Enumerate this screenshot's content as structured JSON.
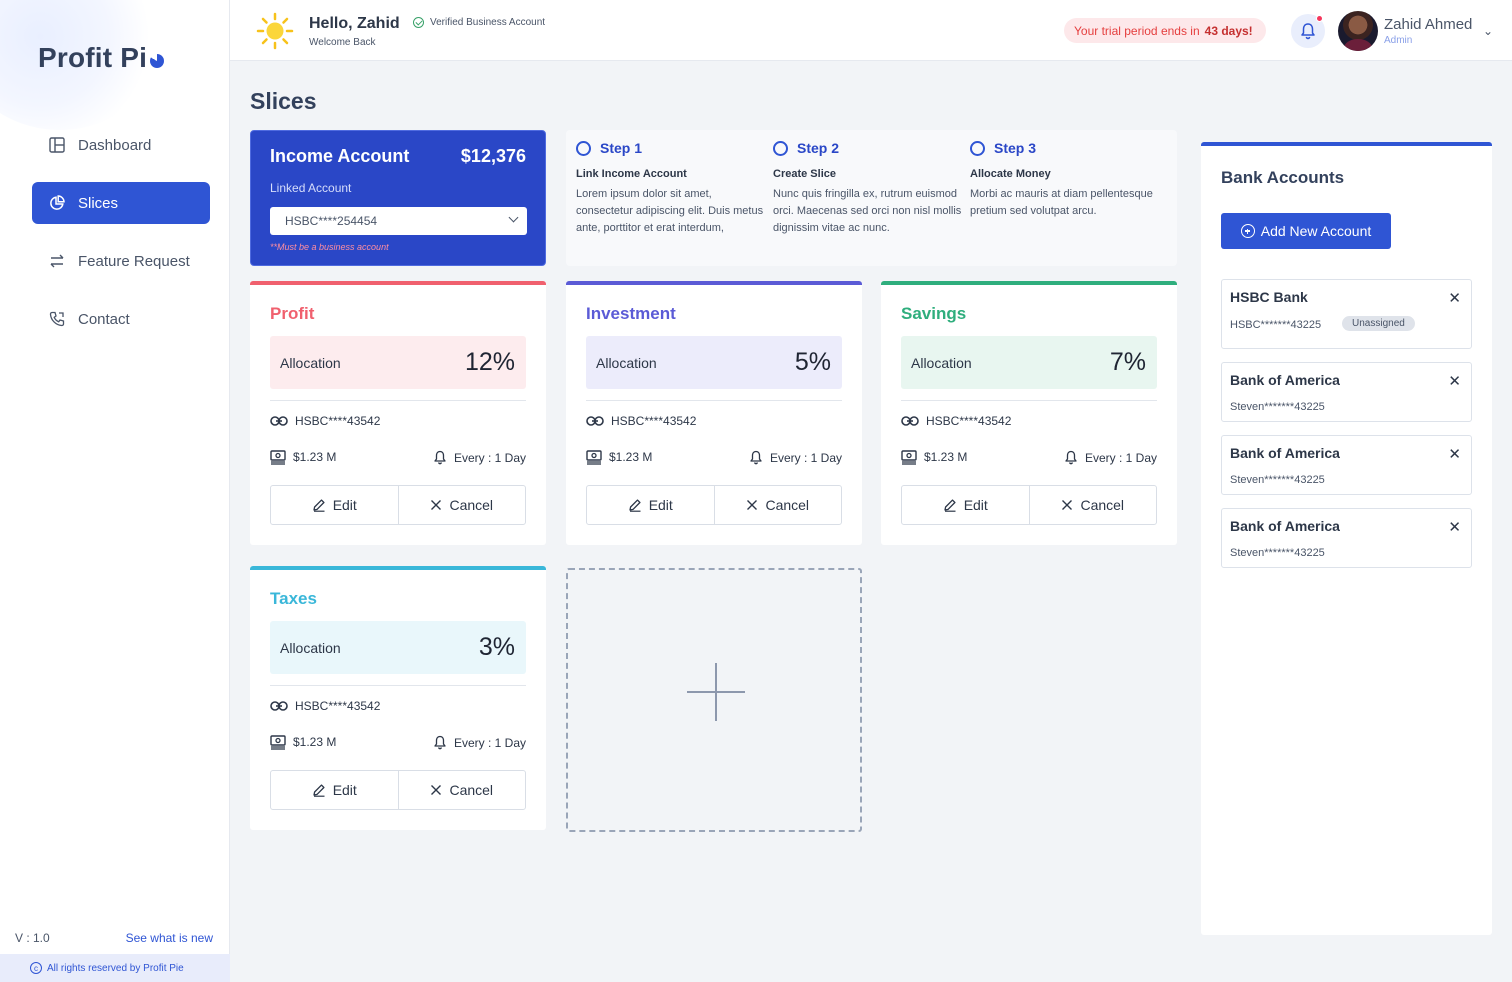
{
  "sidebar": {
    "logo": "Profit Pi",
    "items": [
      {
        "label": "Dashboard"
      },
      {
        "label": "Slices"
      },
      {
        "label": "Feature Request"
      },
      {
        "label": "Contact"
      }
    ],
    "version": "V : 1.0",
    "whats_new": "See what is new",
    "footer": "All rights reserved by Profit Pie"
  },
  "header": {
    "greeting": "Hello, Zahid",
    "welcome": "Welcome Back",
    "verified": "Verified Business Account",
    "trial_prefix": "Your trial period ends in",
    "trial_days": "43 days!",
    "user_name": "Zahid Ahmed",
    "user_role": "Admin"
  },
  "page_title": "Slices",
  "income": {
    "title": "Income Account",
    "amount": "$12,376",
    "linked_label": "Linked Account",
    "selected": "HSBC****254454",
    "note": "**Must be a business account"
  },
  "steps": [
    {
      "title": "Step 1",
      "subtitle": "Link Income Account",
      "desc": "Lorem ipsum dolor sit amet, consectetur adipiscing elit. Duis metus ante, porttitor et erat interdum,"
    },
    {
      "title": "Step 2",
      "subtitle": "Create Slice",
      "desc": "Nunc quis fringilla ex, rutrum euismod orci. Maecenas sed orci non nisl mollis dignissim vitae ac nunc."
    },
    {
      "title": "Step 3",
      "subtitle": "Allocate Money",
      "desc": "Morbi ac mauris at diam pellentesque pretium sed volutpat arcu."
    }
  ],
  "slices": [
    {
      "name": "Profit",
      "alloc_label": "Allocation",
      "alloc": "12%",
      "account": "HSBC****43542",
      "amount": "$1.23 M",
      "freq": "Every : 1 Day",
      "edit": "Edit",
      "cancel": "Cancel",
      "color": "#f0606e",
      "tint": "#fdecee"
    },
    {
      "name": "Investment",
      "alloc_label": "Allocation",
      "alloc": "5%",
      "account": "HSBC****43542",
      "amount": "$1.23 M",
      "freq": "Every : 1 Day",
      "edit": "Edit",
      "cancel": "Cancel",
      "color": "#5b5bd6",
      "tint": "#ececfb"
    },
    {
      "name": "Savings",
      "alloc_label": "Allocation",
      "alloc": "7%",
      "account": "HSBC****43542",
      "amount": "$1.23 M",
      "freq": "Every : 1 Day",
      "edit": "Edit",
      "cancel": "Cancel",
      "color": "#2fae7d",
      "tint": "#e8f6f0"
    },
    {
      "name": "Taxes",
      "alloc_label": "Allocation",
      "alloc": "3%",
      "account": "HSBC****43542",
      "amount": "$1.23 M",
      "freq": "Every : 1 Day",
      "edit": "Edit",
      "cancel": "Cancel",
      "color": "#3ab7d9",
      "tint": "#e9f7fb"
    }
  ],
  "bank": {
    "title": "Bank Accounts",
    "add_label": "Add New Account",
    "accounts": [
      {
        "name": "HSBC Bank",
        "number": "HSBC*******43225",
        "badge": "Unassigned"
      },
      {
        "name": "Bank of America",
        "number": "Steven*******43225"
      },
      {
        "name": "Bank of America",
        "number": "Steven*******43225"
      },
      {
        "name": "Bank of America",
        "number": "Steven*******43225"
      }
    ]
  },
  "colors": {
    "accent": "#2f55d4",
    "income_bg": "#2a47c7",
    "danger": "#e53e3e"
  }
}
